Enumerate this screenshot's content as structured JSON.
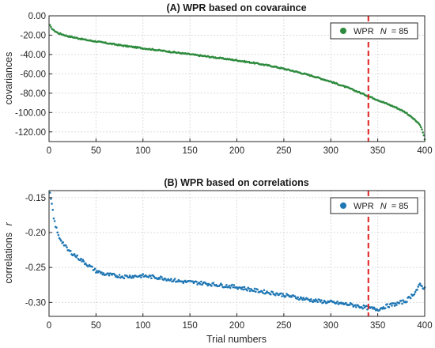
{
  "chart_data": [
    {
      "type": "scatter",
      "title": "(A) WPR based on covaraince",
      "xlabel": "",
      "ylabel": "covariances",
      "xlim": [
        0,
        400
      ],
      "ylim": [
        -130,
        0
      ],
      "xticks": [
        "0",
        "50",
        "100",
        "150",
        "200",
        "250",
        "300",
        "350",
        "400"
      ],
      "yticks": [
        "0.00",
        "-20.00",
        "-40.00",
        "-60.00",
        "-80.00",
        "-100.00",
        "-120.00"
      ],
      "ytick_values": [
        0,
        -20,
        -40,
        -60,
        -80,
        -100,
        -120
      ],
      "grid": true,
      "legend_position": "top-right",
      "legend_label": "WPR",
      "legend_n_italic": "N",
      "legend_n_value": "= 85",
      "marker_color": "#2e8b3e",
      "vline_x": 340,
      "vline_color": "#e02020",
      "series": [
        {
          "name": "WPR N = 85",
          "x": [
            1,
            2,
            5,
            10,
            20,
            40,
            60,
            80,
            100,
            120,
            140,
            160,
            180,
            200,
            220,
            240,
            260,
            280,
            300,
            320,
            340,
            350,
            360,
            370,
            380,
            385,
            390,
            395,
            398,
            400
          ],
          "y": [
            -10,
            -12,
            -15,
            -18,
            -21,
            -25,
            -28,
            -31,
            -33.5,
            -36,
            -38.5,
            -41,
            -43.5,
            -46,
            -49,
            -52.5,
            -57,
            -62,
            -68,
            -75,
            -83,
            -87,
            -91,
            -95,
            -100,
            -104,
            -108,
            -113,
            -120,
            -128
          ]
        }
      ]
    },
    {
      "type": "scatter",
      "title": "(B) WPR based on correlations",
      "xlabel": "Trial numbers",
      "ylabel": "correlations",
      "ylabel_italic": "r",
      "xlim": [
        0,
        400
      ],
      "ylim": [
        -0.32,
        -0.14
      ],
      "xticks": [
        "0",
        "50",
        "100",
        "150",
        "200",
        "250",
        "300",
        "350",
        "400"
      ],
      "yticks": [
        "-0.15",
        "-0.20",
        "-0.25",
        "-0.30"
      ],
      "ytick_values": [
        -0.15,
        -0.2,
        -0.25,
        -0.3
      ],
      "grid": true,
      "legend_position": "top-right",
      "legend_label": "WPR",
      "legend_n_italic": "N",
      "legend_n_value": "= 85",
      "marker_color": "#1f77b4",
      "vline_x": 340,
      "vline_color": "#e02020",
      "series": [
        {
          "name": "WPR N = 85",
          "x": [
            1,
            3,
            5,
            8,
            10,
            15,
            20,
            30,
            40,
            50,
            60,
            80,
            100,
            120,
            140,
            160,
            180,
            200,
            220,
            240,
            260,
            280,
            300,
            320,
            340,
            350,
            360,
            370,
            380,
            390,
            395,
            400
          ],
          "y": [
            -0.145,
            -0.16,
            -0.18,
            -0.195,
            -0.205,
            -0.215,
            -0.225,
            -0.235,
            -0.245,
            -0.255,
            -0.26,
            -0.263,
            -0.262,
            -0.265,
            -0.27,
            -0.272,
            -0.275,
            -0.278,
            -0.283,
            -0.287,
            -0.292,
            -0.297,
            -0.3,
            -0.303,
            -0.308,
            -0.31,
            -0.305,
            -0.302,
            -0.298,
            -0.285,
            -0.275,
            -0.28
          ]
        }
      ]
    }
  ]
}
